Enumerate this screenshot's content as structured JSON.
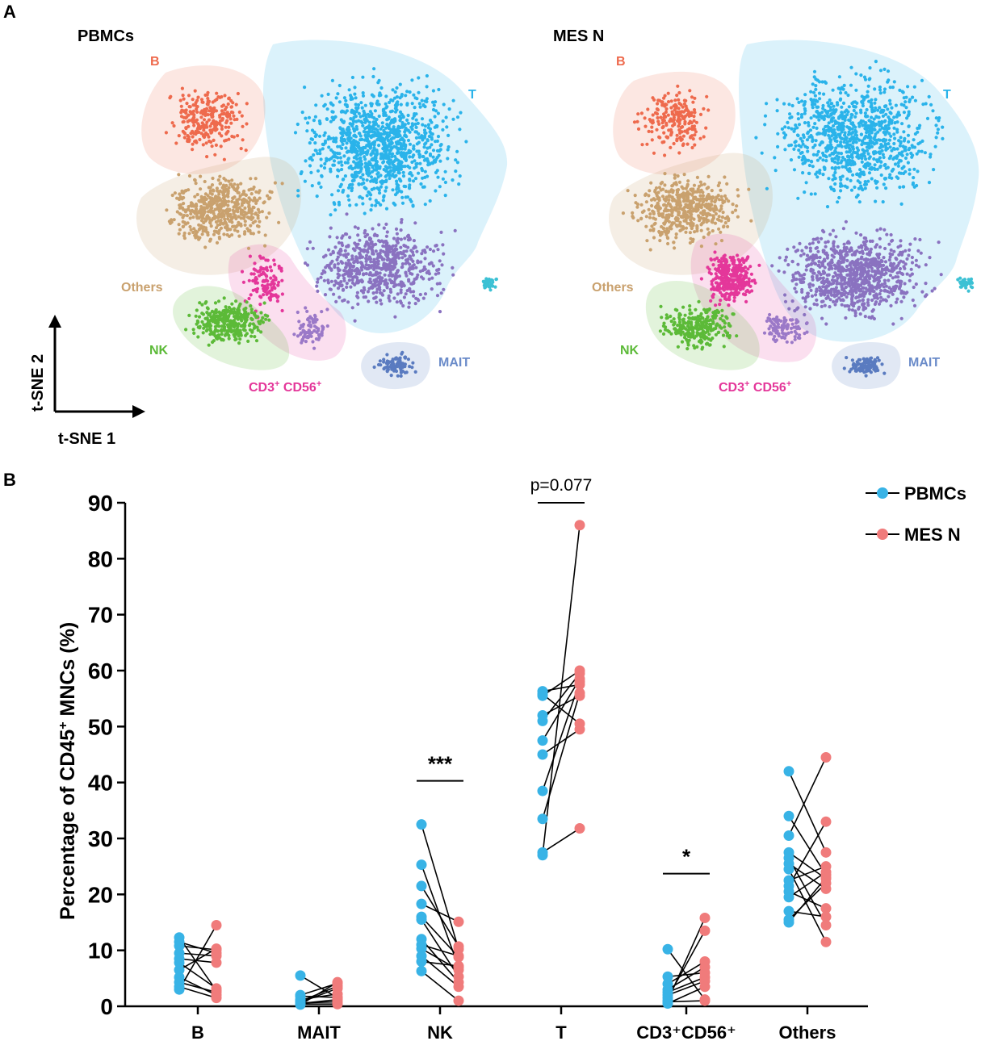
{
  "panel_a": {
    "label": "A",
    "axis_arrows": {
      "x_label": "t-SNE 1",
      "y_label": "t-SNE 2"
    },
    "maps": [
      {
        "title": "PBMCs",
        "clusters": [
          {
            "name": "B",
            "color": "#ee6a4d"
          },
          {
            "name": "T",
            "color": "#2ab3ea"
          },
          {
            "name": "Others",
            "color": "#c9a16e"
          },
          {
            "name": "NK",
            "color": "#5cba38"
          },
          {
            "name": "CD3",
            "sup1": "+",
            "name2": " CD56",
            "sup2": "+",
            "color": "#e4379a"
          },
          {
            "name": "MAIT",
            "color": "#6a8bc9"
          }
        ]
      },
      {
        "title": "MES N",
        "clusters": [
          {
            "name": "B",
            "color": "#ee6a4d"
          },
          {
            "name": "T",
            "color": "#2ab3ea"
          },
          {
            "name": "Others",
            "color": "#c9a16e"
          },
          {
            "name": "NK",
            "color": "#5cba38"
          },
          {
            "name": "CD3",
            "sup1": "+",
            "name2": " CD56",
            "sup2": "+",
            "color": "#e4379a"
          },
          {
            "name": "MAIT",
            "color": "#6a8bc9"
          }
        ]
      }
    ]
  },
  "panel_b": {
    "label": "B"
  },
  "chart_data": {
    "type": "scatter",
    "ylabel_main": "Percentage of CD45",
    "ylabel_sup": "+",
    "ylabel_rest": " MNCs (%)",
    "ylim": [
      0,
      90
    ],
    "yticks": [
      0,
      10,
      20,
      30,
      40,
      50,
      60,
      70,
      80,
      90
    ],
    "categories": [
      "B",
      "MAIT",
      "NK",
      "T",
      "CD3⁺CD56⁺",
      "Others"
    ],
    "legend": [
      {
        "name": "PBMCs",
        "color": "#38b3e6"
      },
      {
        "name": "MES N",
        "color": "#f07b7b"
      }
    ],
    "significance": [
      {
        "category": "NK",
        "text": "***",
        "y": 40.3
      },
      {
        "category": "T",
        "text": "p=0.077",
        "y": 90
      },
      {
        "category": "CD3⁺CD56⁺",
        "text": "*",
        "y": 23.7
      }
    ],
    "pairs": {
      "B": [
        [
          12.3,
          2.8
        ],
        [
          11.5,
          9.5
        ],
        [
          10.8,
          10.1
        ],
        [
          9.5,
          9.0
        ],
        [
          8.5,
          7.8
        ],
        [
          7.8,
          3.2
        ],
        [
          6.5,
          10.3
        ],
        [
          5.2,
          2.0
        ],
        [
          4.3,
          2.5
        ],
        [
          3.5,
          1.5
        ],
        [
          3.0,
          14.5
        ]
      ],
      "MAIT": [
        [
          5.5,
          1.5
        ],
        [
          2.0,
          4.1
        ],
        [
          1.8,
          1.6
        ],
        [
          1.2,
          2.2
        ],
        [
          0.9,
          3.6
        ],
        [
          0.7,
          3.2
        ],
        [
          0.6,
          0.8
        ],
        [
          0.5,
          1.2
        ],
        [
          0.4,
          0.4
        ],
        [
          0.3,
          4.3
        ]
      ],
      "NK": [
        [
          32.5,
          10.2
        ],
        [
          25.3,
          7.0
        ],
        [
          21.5,
          10.7
        ],
        [
          18.3,
          15.1
        ],
        [
          16.0,
          8.8
        ],
        [
          15.5,
          5.3
        ],
        [
          12.0,
          4.3
        ],
        [
          11.0,
          9.0
        ],
        [
          10.3,
          6.5
        ],
        [
          9.0,
          3.5
        ],
        [
          8.0,
          7.2
        ],
        [
          6.3,
          1.0
        ]
      ],
      "T": [
        [
          56.3,
          57.5
        ],
        [
          55.8,
          50.5
        ],
        [
          55.5,
          60.0
        ],
        [
          52.0,
          55.5
        ],
        [
          51.0,
          59.5
        ],
        [
          47.5,
          58.5
        ],
        [
          45.0,
          49.5
        ],
        [
          38.5,
          58.0
        ],
        [
          33.5,
          56.0
        ],
        [
          27.5,
          31.8
        ],
        [
          27.0,
          86.0
        ]
      ],
      "CD3⁺CD56⁺": [
        [
          10.2,
          1.2
        ],
        [
          5.3,
          6.0
        ],
        [
          4.0,
          8.0
        ],
        [
          3.0,
          7.0
        ],
        [
          2.5,
          5.2
        ],
        [
          2.0,
          4.5
        ],
        [
          1.5,
          13.5
        ],
        [
          1.0,
          15.8
        ],
        [
          0.8,
          1.0
        ],
        [
          0.5,
          3.5
        ]
      ],
      "Others": [
        [
          42.0,
          27.5
        ],
        [
          34.0,
          23.5
        ],
        [
          30.5,
          44.5
        ],
        [
          27.5,
          22.8
        ],
        [
          26.5,
          14.5
        ],
        [
          25.5,
          21.0
        ],
        [
          24.5,
          11.5
        ],
        [
          22.5,
          25.0
        ],
        [
          21.5,
          33.0
        ],
        [
          20.5,
          17.5
        ],
        [
          19.5,
          24.0
        ],
        [
          17.0,
          16.0
        ],
        [
          15.5,
          22.0
        ],
        [
          15.0,
          23.0
        ]
      ]
    }
  }
}
